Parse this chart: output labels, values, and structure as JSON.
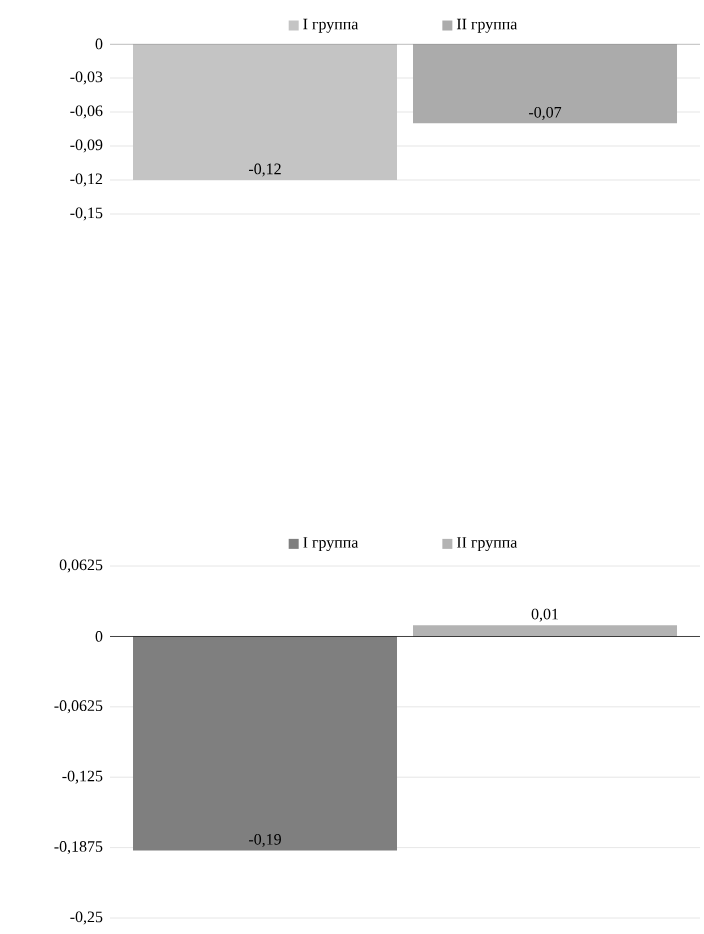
{
  "chart_data": [
    {
      "type": "bar",
      "categories": [
        null
      ],
      "series": [
        {
          "name": "I группа",
          "color": "#c4c4c4",
          "values": [
            -0.12
          ],
          "value_labels": [
            "-0,12"
          ]
        },
        {
          "name": "II группа",
          "color": "#ababab",
          "values": [
            -0.07
          ],
          "value_labels": [
            "-0,07"
          ]
        }
      ],
      "ylim": [
        -0.15,
        0
      ],
      "yticks": [
        {
          "value": 0,
          "label": "0"
        },
        {
          "value": -0.03,
          "label": "-0,03"
        },
        {
          "value": -0.06,
          "label": "-0,06"
        },
        {
          "value": -0.09,
          "label": "-0,09"
        },
        {
          "value": -0.12,
          "label": "-0,12"
        },
        {
          "value": -0.15,
          "label": "-0,15"
        }
      ],
      "grid": "y",
      "legend": "top",
      "tick_labels": "y"
    },
    {
      "type": "bar",
      "categories": [
        null
      ],
      "series": [
        {
          "name": "I группа",
          "color": "#7f7f7f",
          "values": [
            -0.19
          ],
          "value_labels": [
            "-0,19"
          ]
        },
        {
          "name": "II группа",
          "color": "#b3b3b3",
          "values": [
            0.01
          ],
          "value_labels": [
            "0,01"
          ]
        }
      ],
      "ylim": [
        -0.25,
        0.0625
      ],
      "yticks": [
        {
          "value": 0.0625,
          "label": "0,0625"
        },
        {
          "value": 0,
          "label": "0"
        },
        {
          "value": -0.0625,
          "label": "-0,0625"
        },
        {
          "value": -0.125,
          "label": "-0,125"
        },
        {
          "value": -0.1875,
          "label": "-0,1875"
        },
        {
          "value": -0.25,
          "label": "-0,25"
        }
      ],
      "grid": "y",
      "legend": "top",
      "tick_labels": "y"
    }
  ]
}
